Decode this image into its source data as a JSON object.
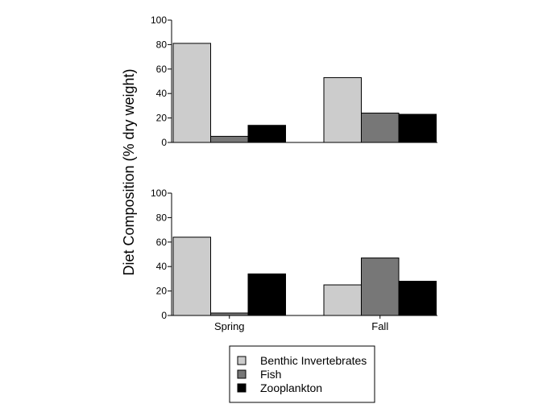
{
  "chart_data": {
    "type": "bar",
    "ylabel": "Diet Composition (% dry weight)",
    "categories": [
      "Spring",
      "Fall"
    ],
    "ylim": [
      0,
      100
    ],
    "yticks": [
      0,
      20,
      40,
      60,
      80,
      100
    ],
    "grid": false,
    "legend": "bottom",
    "legend_entries": [
      "Benthic Invertebrates",
      "Fish",
      "Zooplankton"
    ],
    "colors": {
      "Benthic Invertebrates": "#cccccc",
      "Fish": "#777777",
      "Zooplankton": "#000000"
    },
    "panels": [
      {
        "series": [
          {
            "name": "Benthic Invertebrates",
            "values": [
              81,
              53
            ]
          },
          {
            "name": "Fish",
            "values": [
              5,
              24
            ]
          },
          {
            "name": "Zooplankton",
            "values": [
              14,
              23
            ]
          }
        ]
      },
      {
        "series": [
          {
            "name": "Benthic Invertebrates",
            "values": [
              64,
              25
            ]
          },
          {
            "name": "Fish",
            "values": [
              2,
              47
            ]
          },
          {
            "name": "Zooplankton",
            "values": [
              34,
              28
            ]
          }
        ]
      }
    ]
  }
}
